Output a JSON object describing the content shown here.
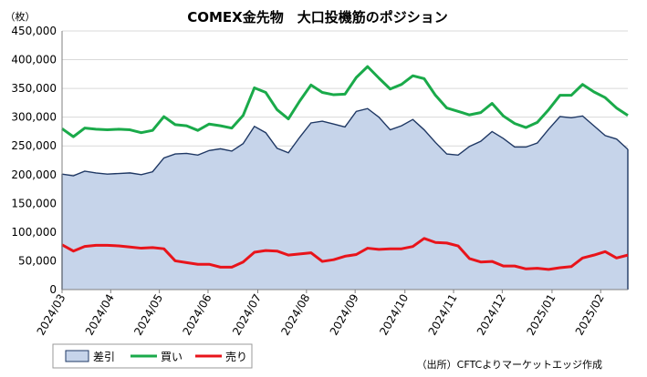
{
  "chart_data": {
    "type": "line",
    "title": "COMEX金先物　大口投機筋のポジション",
    "unit_label": "（枚）",
    "source": "（出所）CFTCよりマーケットエッジ作成",
    "ylim": [
      0,
      450000
    ],
    "yticks": [
      "0",
      "50,000",
      "100,000",
      "150,000",
      "200,000",
      "250,000",
      "300,000",
      "350,000",
      "400,000",
      "450,000"
    ],
    "ytick_values": [
      0,
      50000,
      100000,
      150000,
      200000,
      250000,
      300000,
      350000,
      400000,
      450000
    ],
    "xlim": [
      0,
      53
    ],
    "xticks": [
      "2024/03",
      "2024/04",
      "2024/05",
      "2024/06",
      "2024/07",
      "2024/08",
      "2024/09",
      "2024/10",
      "2024/11",
      "2024/12",
      "2025/01",
      "2025/02"
    ],
    "xtick_index": [
      0,
      4.3,
      8.6,
      12.9,
      17.3,
      21.6,
      25.9,
      30.3,
      34.6,
      38.9,
      43.3,
      47.6
    ],
    "grid": true,
    "legend_position": "bottom-left",
    "series": [
      {
        "name": "差引",
        "type": "area",
        "color": "#1f3864",
        "fill": "#c6d4ea",
        "values": [
          201000,
          198000,
          206000,
          203000,
          201000,
          202000,
          203000,
          200000,
          205000,
          229000,
          236000,
          237000,
          234000,
          242000,
          245000,
          241000,
          254000,
          284000,
          273000,
          246000,
          238000,
          265000,
          290000,
          293000,
          288000,
          283000,
          310000,
          315000,
          300000,
          278000,
          285000,
          296000,
          278000,
          256000,
          236000,
          234000,
          249000,
          258000,
          275000,
          263000,
          248000,
          248000,
          255000,
          279000,
          301000,
          299000,
          302000,
          285000,
          268000,
          262000,
          244000
        ]
      },
      {
        "name": "買い",
        "type": "line",
        "color": "#1aaa4a",
        "values": [
          280000,
          266000,
          281000,
          279000,
          278000,
          279000,
          278000,
          273000,
          277000,
          301000,
          287000,
          285000,
          277000,
          288000,
          285000,
          281000,
          303000,
          351000,
          343000,
          313000,
          297000,
          328000,
          356000,
          343000,
          339000,
          340000,
          369000,
          388000,
          368000,
          349000,
          357000,
          372000,
          367000,
          338000,
          316000,
          310000,
          304000,
          308000,
          324000,
          302000,
          289000,
          282000,
          291000,
          313000,
          338000,
          338000,
          357000,
          344000,
          334000,
          316000,
          303000
        ]
      },
      {
        "name": "売り",
        "type": "line",
        "color": "#e8141b",
        "values": [
          78000,
          67000,
          75000,
          77000,
          77000,
          76000,
          74000,
          72000,
          73000,
          71000,
          50000,
          47000,
          44000,
          44000,
          39000,
          39000,
          48000,
          65000,
          68000,
          67000,
          60000,
          62000,
          64000,
          49000,
          52000,
          58000,
          61000,
          72000,
          70000,
          71000,
          71000,
          75000,
          89000,
          82000,
          81000,
          76000,
          54000,
          48000,
          49000,
          41000,
          41000,
          36000,
          37000,
          35000,
          38000,
          40000,
          55000,
          60000,
          66000,
          55000,
          60000
        ]
      }
    ]
  }
}
